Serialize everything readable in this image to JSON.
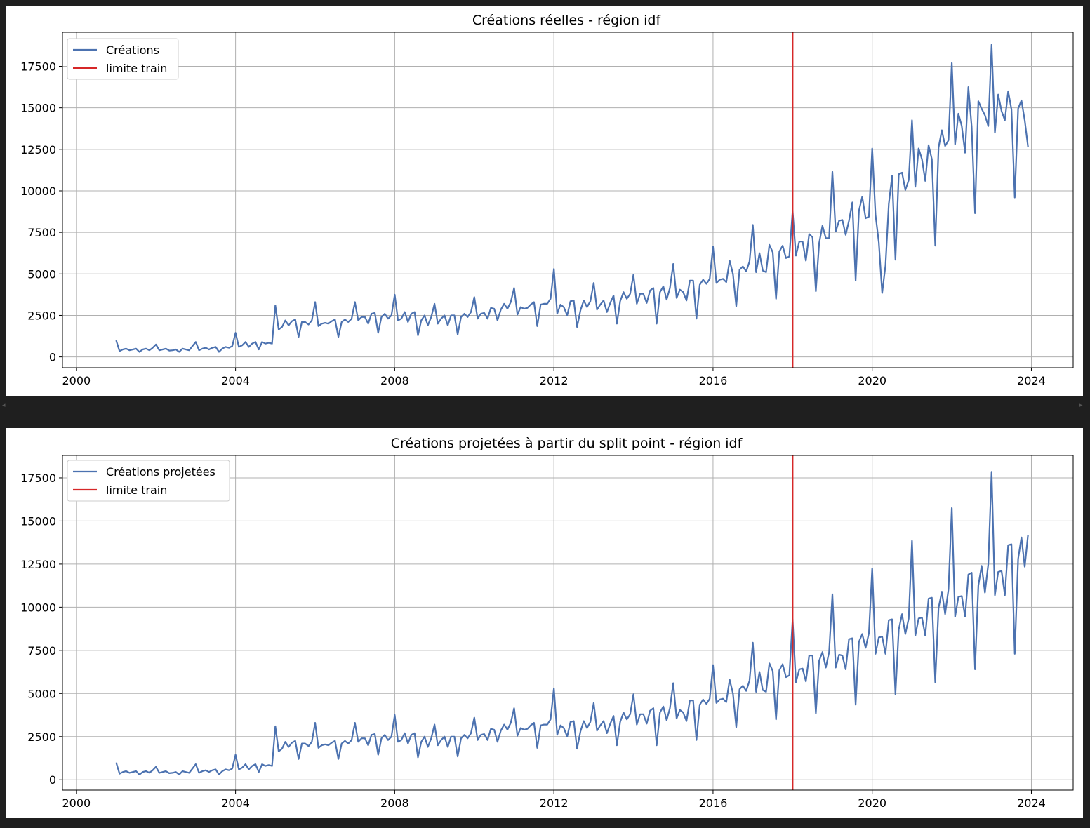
{
  "chart_data": [
    {
      "type": "line",
      "title": "Créations réelles - région idf",
      "xlabel": "",
      "ylabel": "",
      "xlim": [
        1999.65,
        2025.05
      ],
      "ylim": [
        -650,
        19550
      ],
      "xticks": [
        2000,
        2004,
        2008,
        2012,
        2016,
        2020,
        2024
      ],
      "xtick_labels": [
        "2000",
        "2004",
        "2008",
        "2012",
        "2016",
        "2020",
        "2024"
      ],
      "yticks": [
        0,
        2500,
        5000,
        7500,
        10000,
        12500,
        15000,
        17500
      ],
      "ytick_labels": [
        "0",
        "2500",
        "5000",
        "7500",
        "10000",
        "12500",
        "15000",
        "17500"
      ],
      "grid": true,
      "legend_position": "upper-left",
      "vline": {
        "x": 2018,
        "label": "limite train",
        "color": "#d62728"
      },
      "series": [
        {
          "name": "Créations",
          "color": "#4c72b0",
          "x_start": 2001.0,
          "x_step": 0.0833333,
          "values": [
            1000,
            350,
            450,
            500,
            400,
            450,
            500,
            300,
            450,
            500,
            400,
            550,
            750,
            400,
            450,
            500,
            380,
            400,
            450,
            300,
            500,
            450,
            400,
            650,
            900,
            400,
            500,
            550,
            450,
            550,
            600,
            300,
            500,
            600,
            550,
            650,
            1450,
            600,
            700,
            900,
            600,
            800,
            900,
            450,
            900,
            800,
            850,
            800,
            3100,
            1650,
            1800,
            2200,
            1900,
            2150,
            2250,
            1200,
            2100,
            2100,
            1950,
            2200,
            3300,
            1850,
            2000,
            2050,
            2000,
            2150,
            2250,
            1200,
            2100,
            2250,
            2100,
            2300,
            3300,
            2200,
            2400,
            2400,
            2000,
            2600,
            2650,
            1450,
            2400,
            2600,
            2300,
            2500,
            3750,
            2200,
            2300,
            2700,
            2100,
            2600,
            2700,
            1300,
            2200,
            2500,
            1900,
            2400,
            3200,
            2000,
            2300,
            2500,
            1900,
            2500,
            2500,
            1350,
            2400,
            2600,
            2400,
            2700,
            3600,
            2300,
            2600,
            2650,
            2300,
            2950,
            2900,
            2200,
            2850,
            3200,
            2900,
            3300,
            4150,
            2550,
            3000,
            2900,
            2950,
            3150,
            3300,
            1850,
            3150,
            3200,
            3200,
            3500,
            5300,
            2600,
            3150,
            3000,
            2500,
            3350,
            3400,
            1800,
            2800,
            3400,
            3000,
            3350,
            4450,
            2850,
            3150,
            3400,
            2700,
            3250,
            3700,
            2000,
            3350,
            3900,
            3500,
            3800,
            4950,
            3200,
            3800,
            3800,
            3250,
            4000,
            4150,
            2000,
            3900,
            4250,
            3450,
            4150,
            5600,
            3550,
            4050,
            3900,
            3400,
            4600,
            4600,
            2300,
            4350,
            4650,
            4400,
            4700,
            6650,
            4450,
            4650,
            4700,
            4500,
            5800,
            5000,
            3050,
            5250,
            5450,
            5150,
            5750,
            7950,
            5100,
            6250,
            5200,
            5100,
            6750,
            6300,
            3500,
            6350,
            6700,
            5950,
            6050,
            8800,
            6100,
            6950,
            6950,
            5800,
            7400,
            7200,
            3950,
            6850,
            7900,
            7150,
            7150,
            11150,
            7550,
            8200,
            8250,
            7350,
            8200,
            9300,
            4600,
            8800,
            9650,
            8350,
            8450,
            12550,
            8550,
            6900,
            3850,
            5500,
            9200,
            10900,
            5850,
            11000,
            11100,
            10050,
            10650,
            14250,
            10250,
            12550,
            11900,
            10600,
            12750,
            11900,
            6700,
            12600,
            13650,
            12700,
            13050,
            17700,
            12800,
            14650,
            13900,
            12300,
            16250,
            13850,
            8650,
            15400,
            14950,
            14550,
            13900,
            18800,
            13500,
            15800,
            14800,
            14250,
            16000,
            14900,
            9600,
            14950,
            15450,
            14250,
            12650
          ]
        }
      ]
    },
    {
      "type": "line",
      "title": "Créations projetées à partir du split point - région idf",
      "xlabel": "",
      "ylabel": "",
      "xlim": [
        1999.65,
        2025.05
      ],
      "ylim": [
        -600,
        18800
      ],
      "xticks": [
        2000,
        2004,
        2008,
        2012,
        2016,
        2020,
        2024
      ],
      "xtick_labels": [
        "2000",
        "2004",
        "2008",
        "2012",
        "2016",
        "2020",
        "2024"
      ],
      "yticks": [
        0,
        2500,
        5000,
        7500,
        10000,
        12500,
        15000,
        17500
      ],
      "ytick_labels": [
        "0",
        "2500",
        "5000",
        "7500",
        "10000",
        "12500",
        "15000",
        "17500"
      ],
      "grid": true,
      "legend_position": "upper-left",
      "vline": {
        "x": 2018,
        "label": "limite train",
        "color": "#d62728"
      },
      "series": [
        {
          "name": "Créations projetées",
          "color": "#4c72b0",
          "x_start": 2001.0,
          "x_step": 0.0833333,
          "values": [
            1000,
            350,
            450,
            500,
            400,
            450,
            500,
            300,
            450,
            500,
            400,
            550,
            750,
            400,
            450,
            500,
            380,
            400,
            450,
            300,
            500,
            450,
            400,
            650,
            900,
            400,
            500,
            550,
            450,
            550,
            600,
            300,
            500,
            600,
            550,
            650,
            1450,
            600,
            700,
            900,
            600,
            800,
            900,
            450,
            900,
            800,
            850,
            800,
            3100,
            1650,
            1800,
            2200,
            1900,
            2150,
            2250,
            1200,
            2100,
            2100,
            1950,
            2200,
            3300,
            1850,
            2000,
            2050,
            2000,
            2150,
            2250,
            1200,
            2100,
            2250,
            2100,
            2300,
            3300,
            2200,
            2400,
            2400,
            2000,
            2600,
            2650,
            1450,
            2400,
            2600,
            2300,
            2500,
            3750,
            2200,
            2300,
            2700,
            2100,
            2600,
            2700,
            1300,
            2200,
            2500,
            1900,
            2400,
            3200,
            2000,
            2300,
            2500,
            1900,
            2500,
            2500,
            1350,
            2400,
            2600,
            2400,
            2700,
            3600,
            2300,
            2600,
            2650,
            2300,
            2950,
            2900,
            2200,
            2850,
            3200,
            2900,
            3300,
            4150,
            2550,
            3000,
            2900,
            2950,
            3150,
            3300,
            1850,
            3150,
            3200,
            3200,
            3500,
            5300,
            2600,
            3150,
            3000,
            2500,
            3350,
            3400,
            1800,
            2800,
            3400,
            3000,
            3350,
            4450,
            2850,
            3150,
            3400,
            2700,
            3250,
            3700,
            2000,
            3350,
            3900,
            3500,
            3800,
            4950,
            3200,
            3800,
            3800,
            3250,
            4000,
            4150,
            2000,
            3900,
            4250,
            3450,
            4150,
            5600,
            3550,
            4050,
            3900,
            3400,
            4600,
            4600,
            2300,
            4350,
            4650,
            4400,
            4700,
            6650,
            4450,
            4650,
            4700,
            4500,
            5800,
            5000,
            3050,
            5250,
            5450,
            5150,
            5750,
            7950,
            5100,
            6250,
            5200,
            5100,
            6750,
            6300,
            3500,
            6350,
            6700,
            5950,
            6050,
            9300,
            5650,
            6400,
            6450,
            5700,
            7200,
            7200,
            3850,
            6900,
            7400,
            6500,
            7400,
            10750,
            6500,
            7250,
            7200,
            6400,
            8150,
            8200,
            4350,
            8000,
            8450,
            7650,
            8500,
            12250,
            7300,
            8250,
            8300,
            7300,
            9250,
            9300,
            4950,
            8700,
            9600,
            8450,
            9350,
            13850,
            8350,
            9350,
            9400,
            8350,
            10500,
            10550,
            5650,
            9950,
            10900,
            9600,
            11050,
            15750,
            9450,
            10600,
            10650,
            9450,
            11900,
            12000,
            6400,
            11250,
            12400,
            10850,
            12500,
            17850,
            10700,
            12050,
            12100,
            10700,
            13600,
            13650,
            7300,
            12800,
            14050,
            12350,
            14200
          ]
        }
      ]
    }
  ]
}
